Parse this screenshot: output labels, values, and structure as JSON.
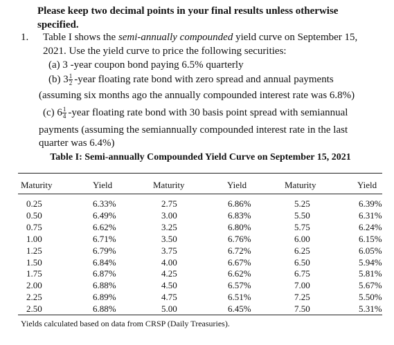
{
  "instruction": {
    "line1": "Please keep two decimal points in your final results unless otherwise",
    "line2": "specified."
  },
  "problem": {
    "number": "1.",
    "line1_a": "Table I shows the ",
    "line1_italic": "semi-annually compounded",
    "line1_b": " yield curve on September 15,",
    "line2": "2021. Use the yield curve to price the following securities:",
    "part_a": "(a) 3 -year coupon bond paying 6.5% quarterly",
    "part_b": {
      "prefix": "(b) 3",
      "frac_num": "1",
      "frac_den": "2",
      "line1": "-year floating rate bond with zero spread and annual payments",
      "line2": "(assuming six months ago the annually compounded interest rate was 6.8%)"
    },
    "part_c": {
      "prefix": "(c) 6",
      "frac_num": "1",
      "frac_den": "4",
      "line1": "-year floating rate bond with 30 basis point spread with semiannual",
      "line2": "payments (assuming the semiannually compounded interest rate in the last",
      "line3": "quarter was 6.4%)"
    }
  },
  "table": {
    "title": "Table I:  Semi-annually Compounded Yield Curve on September 15, 2021",
    "headers": [
      "Maturity",
      "Yield",
      "Maturity",
      "Yield",
      "Maturity",
      "Yield"
    ],
    "columns": [
      {
        "maturity": [
          "0.25",
          "0.50",
          "0.75",
          "1.00",
          "1.25",
          "1.50",
          "1.75",
          "2.00",
          "2.25",
          "2.50"
        ],
        "yield": [
          "6.33%",
          "6.49%",
          "6.62%",
          "6.71%",
          "6.79%",
          "6.84%",
          "6.87%",
          "6.88%",
          "6.89%",
          "6.88%"
        ]
      },
      {
        "maturity": [
          "2.75",
          "3.00",
          "3.25",
          "3.50",
          "3.75",
          "4.00",
          "4.25",
          "4.50",
          "4.75",
          "5.00"
        ],
        "yield": [
          "6.86%",
          "6.83%",
          "6.80%",
          "6.76%",
          "6.72%",
          "6.67%",
          "6.62%",
          "6.57%",
          "6.51%",
          "6.45%"
        ]
      },
      {
        "maturity": [
          "5.25",
          "5.50",
          "5.75",
          "6.00",
          "6.25",
          "6.50",
          "6.75",
          "7.00",
          "7.25",
          "7.50"
        ],
        "yield": [
          "6.39%",
          "6.31%",
          "6.24%",
          "6.15%",
          "6.05%",
          "5.94%",
          "5.81%",
          "5.67%",
          "5.50%",
          "5.31%"
        ]
      }
    ],
    "note": "Yields calculated based on data from CRSP (Daily Treasuries)."
  }
}
